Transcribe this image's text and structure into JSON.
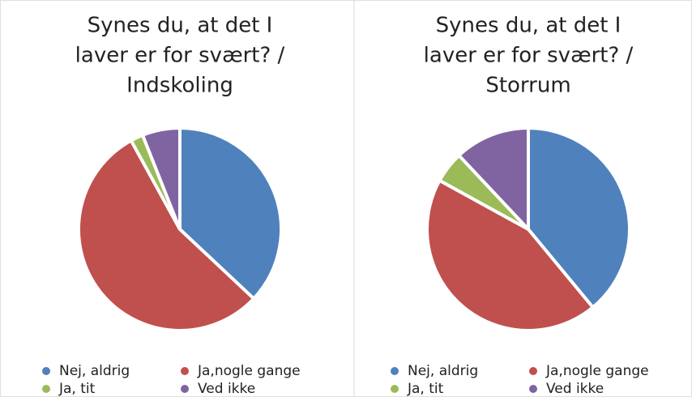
{
  "chart_data": [
    {
      "type": "pie",
      "title": [
        "Synes du, at det I",
        "laver er for svært? /",
        "Indskoling"
      ],
      "categories": [
        "Nej, aldrig",
        "Ja,nogle gange",
        "Ja, tit",
        "Ved ikke"
      ],
      "values": [
        37,
        55,
        2,
        6
      ],
      "colors": [
        "#4f81bd",
        "#c0504d",
        "#9bbb59",
        "#8064a2"
      ]
    },
    {
      "type": "pie",
      "title": [
        "Synes du, at det I",
        "laver er for svært? /",
        "Storrum"
      ],
      "categories": [
        "Nej, aldrig",
        "Ja,nogle gange",
        "Ja, tit",
        "Ved ikke"
      ],
      "values": [
        39,
        44,
        5,
        12
      ],
      "colors": [
        "#4f81bd",
        "#c0504d",
        "#9bbb59",
        "#8064a2"
      ]
    }
  ]
}
